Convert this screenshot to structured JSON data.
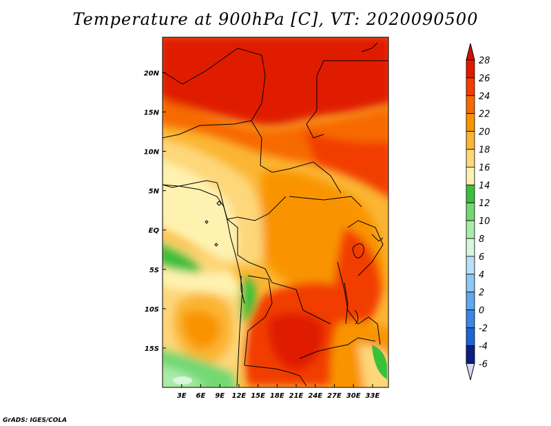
{
  "title": "Temperature at 900hPa [C], VT: 2020090500",
  "credit": "GrADS: IGES/COLA",
  "map": {
    "lon_range": [
      0,
      35.5
    ],
    "lat_range": [
      -20,
      24.5
    ],
    "lon_ticks": [
      "3E",
      "6E",
      "9E",
      "12E",
      "15E",
      "18E",
      "21E",
      "24E",
      "27E",
      "30E",
      "33E"
    ],
    "lat_ticks": [
      "20N",
      "15N",
      "10N",
      "5N",
      "EQ",
      "5S",
      "10S",
      "15S"
    ]
  },
  "colorbar": {
    "labels": [
      "28",
      "26",
      "24",
      "22",
      "20",
      "18",
      "16",
      "14",
      "12",
      "10",
      "8",
      "6",
      "4",
      "2",
      "0",
      "-2",
      "-4",
      "-6"
    ],
    "colors": [
      "#e01a00",
      "#f23c00",
      "#f76a00",
      "#f99400",
      "#fbb533",
      "#fdd77a",
      "#fff2b0",
      "#3bc03b",
      "#73d873",
      "#a9ecaa",
      "#d6f6de",
      "#b8e0f8",
      "#8cc8f4",
      "#5ea8ee",
      "#3a86e4",
      "#1f63d4",
      "#1040b0",
      "#0a1f80"
    ],
    "top_arrow_color": "#d01200",
    "bottom_arrow_color": "#d8d8f8"
  }
}
